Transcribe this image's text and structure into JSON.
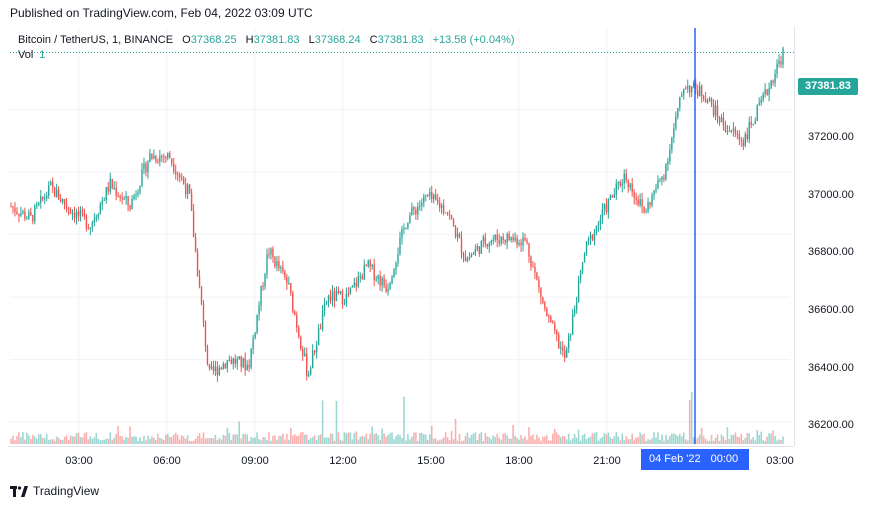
{
  "published": "Published on TradingView.com, Feb 04, 2022 03:09 UTC",
  "legend": {
    "symbol": "Bitcoin / TetherUS, 1, BINANCE",
    "o_label": "O",
    "o_value": "37368.25",
    "h_label": "H",
    "h_value": "37381.83",
    "l_label": "L",
    "l_value": "37368.24",
    "c_label": "C",
    "c_value": "37381.83",
    "change": "+13.58 (+0.04%)",
    "vol_label": "Vol",
    "vol_value": "1"
  },
  "price_badge": "37381.83",
  "price_ticks": [
    "37200.00",
    "37000.00",
    "36800.00",
    "36600.00",
    "36400.00",
    "36200.00"
  ],
  "time_ticks": [
    "03:00",
    "06:00",
    "09:00",
    "12:00",
    "15:00",
    "18:00",
    "21:00",
    "03:00"
  ],
  "crosshair": {
    "date": "04 Feb '22",
    "time": "00:00"
  },
  "brand": "TradingView",
  "colors": {
    "up": "#26a69a",
    "down": "#ef5350",
    "crosshair": "#2962ff",
    "badge": "#26a69a"
  },
  "chart_data": {
    "type": "line",
    "title": "Bitcoin / TetherUS, 1, BINANCE",
    "xlabel": "",
    "ylabel": "",
    "ylim": [
      36130,
      37460
    ],
    "grid": true,
    "x": [
      "01:15",
      "02:00",
      "03:00",
      "04:00",
      "05:00",
      "06:00",
      "07:00",
      "08:00",
      "09:00",
      "09:45",
      "10:00",
      "10:15",
      "11:00",
      "11:30",
      "12:00",
      "12:15",
      "12:30",
      "13:00",
      "14:00",
      "15:00",
      "15:30",
      "16:00",
      "16:10",
      "16:30",
      "17:00",
      "17:30",
      "18:00",
      "19:00",
      "20:00",
      "20:45",
      "21:00",
      "21:30",
      "22:00",
      "23:00",
      "23:50",
      "00:10",
      "01:00",
      "01:45",
      "02:30",
      "03:00"
    ],
    "series": [
      {
        "values": [
          36890,
          36850,
          36950,
          36880,
          36830,
          36960,
          36890,
          37050,
          37050,
          36930,
          36350,
          36400,
          36380,
          36750,
          36640,
          36350,
          36600,
          36600,
          36700,
          36630,
          36850,
          36920,
          36880,
          36720,
          36780,
          36790,
          36780,
          36550,
          36400,
          36750,
          36880,
          36990,
          36870,
          37000,
          37280,
          37250,
          37150,
          37100,
          37230,
          37380
        ]
      }
    ],
    "volume_note": "volume histogram",
    "crosshair_x": "04 Feb '22 00:00"
  }
}
